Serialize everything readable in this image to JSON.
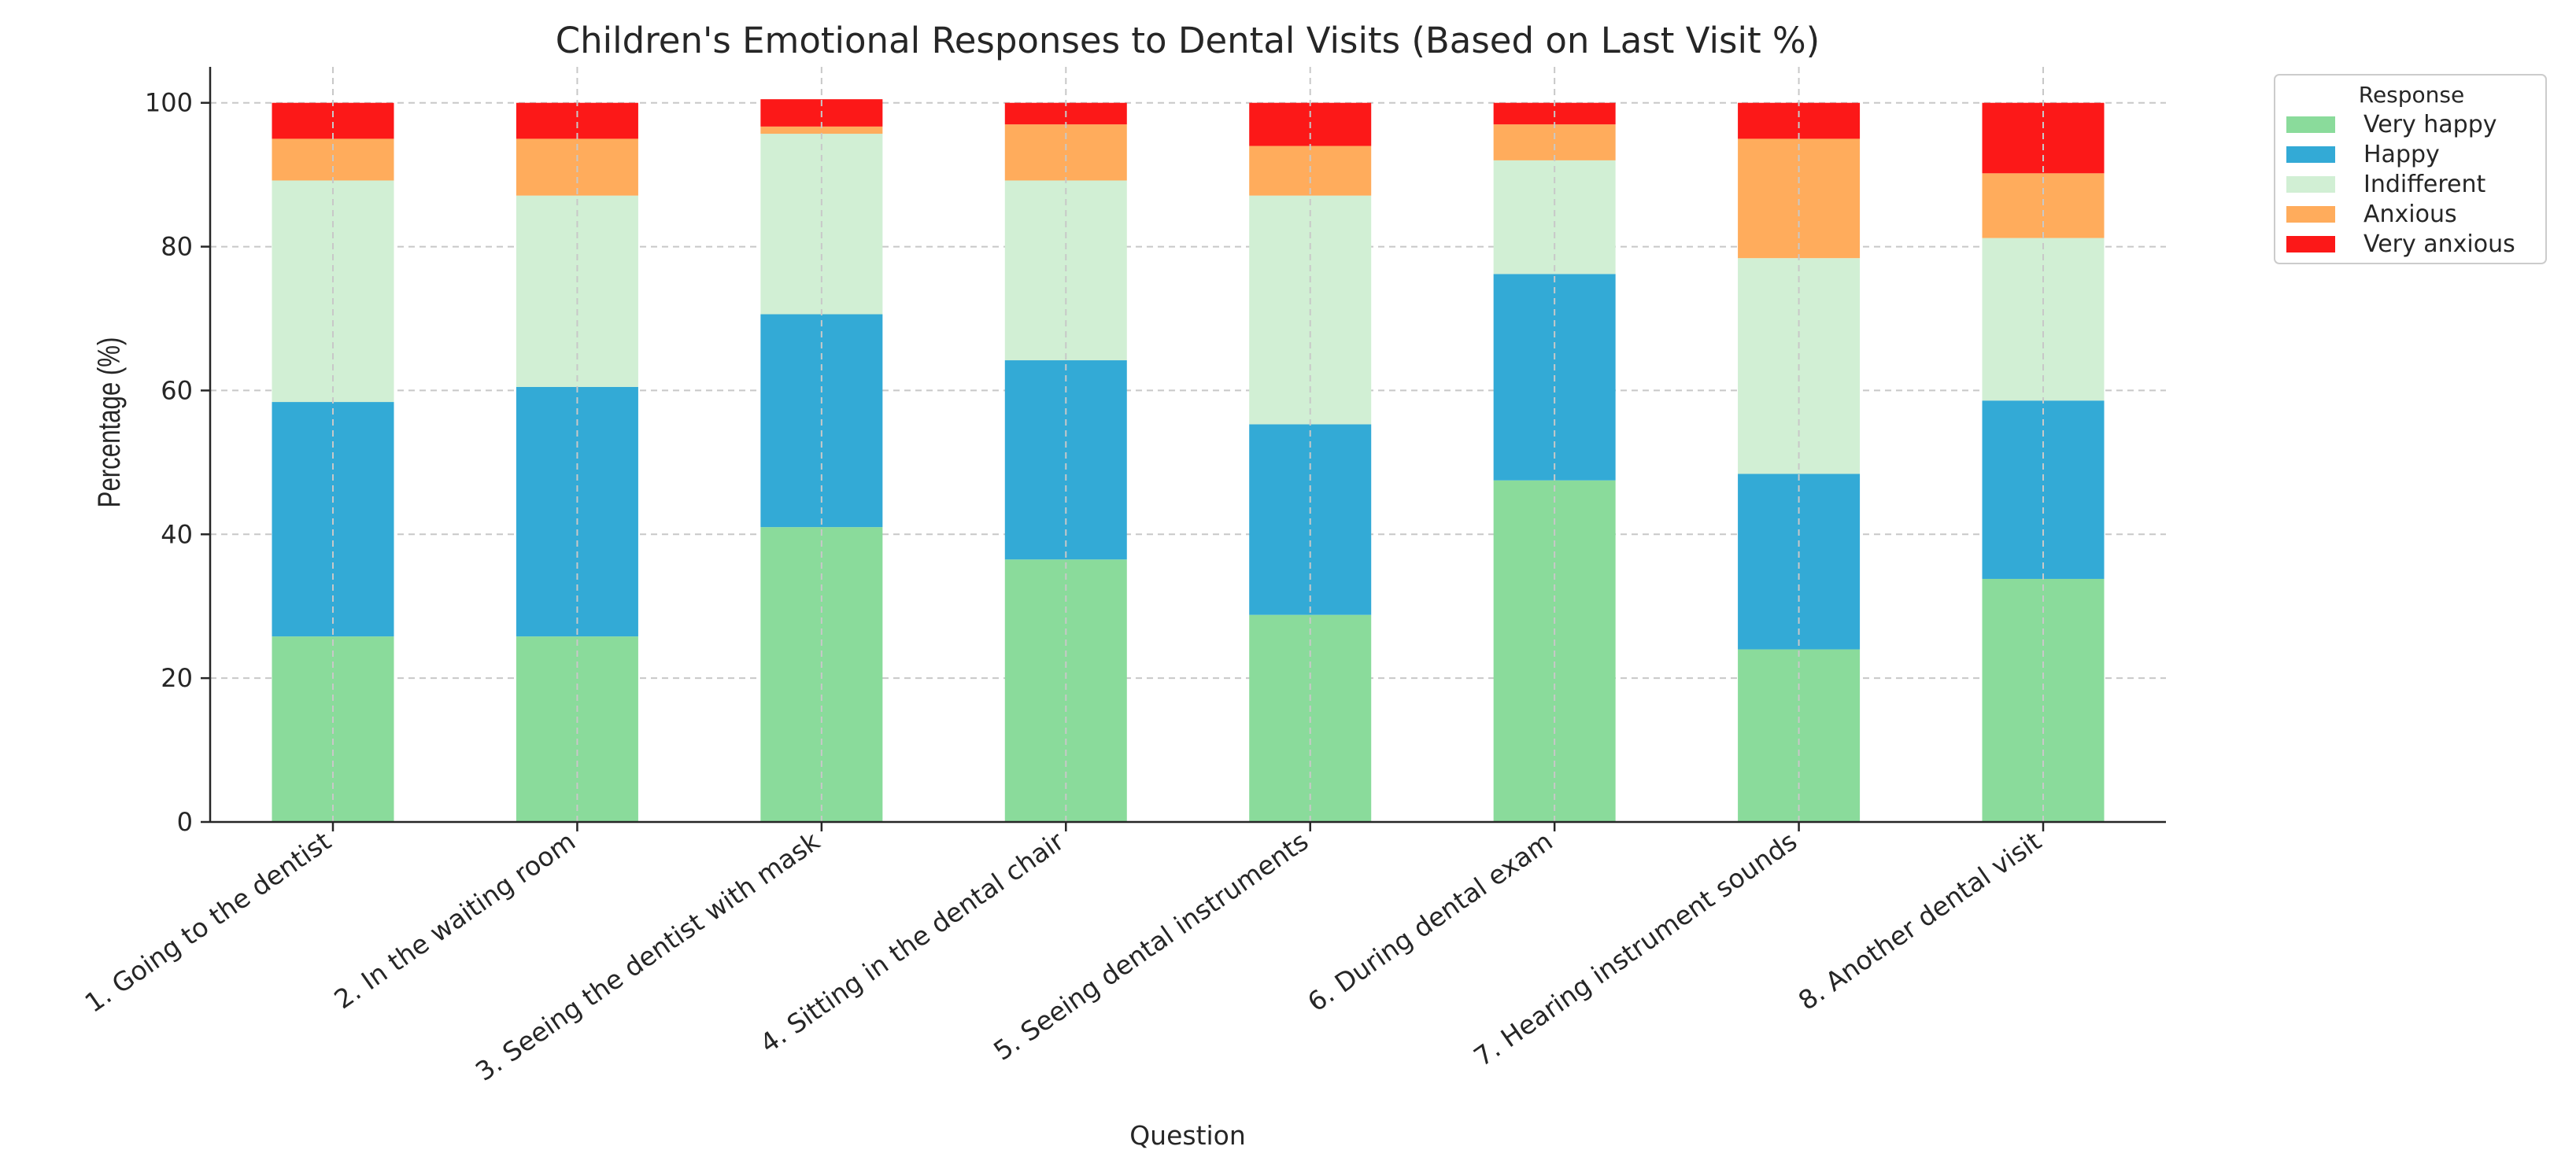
{
  "chart_data": {
    "type": "bar",
    "stacked": true,
    "title": "Children's Emotional Responses to Dental Visits (Based on Last Visit %)",
    "xlabel": "Question",
    "ylabel": "Percentage (%)",
    "ylim": [
      0,
      105
    ],
    "yticks": [
      0,
      20,
      40,
      60,
      80,
      100
    ],
    "grid": true,
    "legend_title": "Response",
    "legend_position": "outside top-right",
    "categories": [
      "1. Going to the dentist",
      "2. In the waiting room",
      "3. Seeing the dentist with mask",
      "4. Sitting in the dental chair",
      "5. Seeing dental instruments",
      "6. During dental exam",
      "7. Hearing instrument sounds",
      "8. Another dental visit"
    ],
    "series": [
      {
        "name": "Very happy",
        "color": "#8adb9b",
        "values": [
          25.8,
          25.8,
          41.0,
          36.5,
          28.8,
          47.5,
          24.0,
          33.8
        ]
      },
      {
        "name": "Happy",
        "color": "#33aad6",
        "values": [
          32.6,
          34.7,
          29.6,
          27.7,
          26.5,
          28.7,
          24.4,
          24.8
        ]
      },
      {
        "name": "Indifferent",
        "color": "#d1efd4",
        "values": [
          30.8,
          26.6,
          25.1,
          25.0,
          31.8,
          15.8,
          30.0,
          22.6
        ]
      },
      {
        "name": "Anxious",
        "color": "#ffac5c",
        "values": [
          5.8,
          7.9,
          1.0,
          7.8,
          6.9,
          5.0,
          16.6,
          9.0
        ]
      },
      {
        "name": "Very anxious",
        "color": "#fc1818",
        "values": [
          5.0,
          5.0,
          3.8,
          3.0,
          6.0,
          3.0,
          5.0,
          9.8
        ]
      }
    ]
  }
}
